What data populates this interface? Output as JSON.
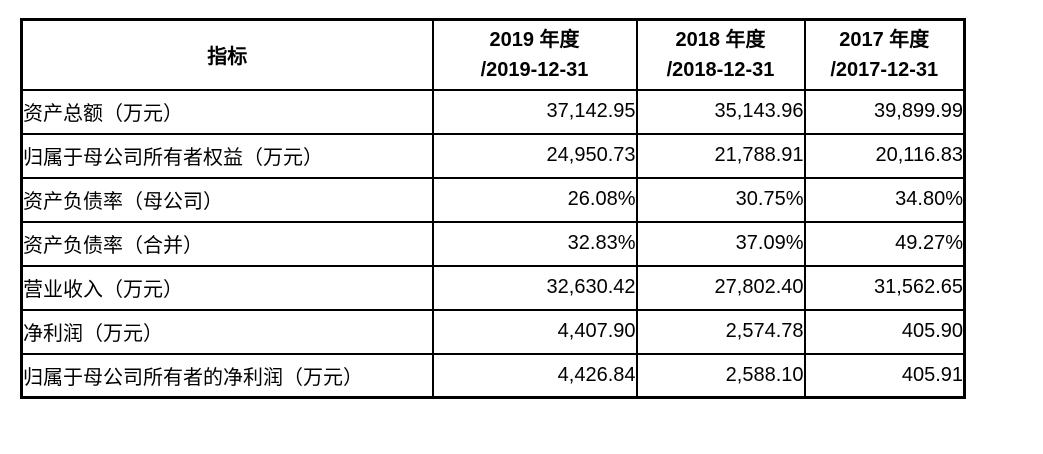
{
  "table": {
    "header": {
      "indicator_label": "指标",
      "period_columns": [
        {
          "line1": "2019 年度",
          "line2": "/2019-12-31"
        },
        {
          "line1": "2018 年度",
          "line2": "/2018-12-31"
        },
        {
          "line1": "2017 年度",
          "line2": "/2017-12-31"
        }
      ]
    },
    "rows": [
      {
        "label": "资产总额（万元）",
        "values": [
          "37,142.95",
          "35,143.96",
          "39,899.99"
        ]
      },
      {
        "label": "归属于母公司所有者权益（万元）",
        "values": [
          "24,950.73",
          "21,788.91",
          "20,116.83"
        ]
      },
      {
        "label": "资产负债率（母公司）",
        "values": [
          "26.08%",
          "30.75%",
          "34.80%"
        ]
      },
      {
        "label": "资产负债率（合并）",
        "values": [
          "32.83%",
          "37.09%",
          "49.27%"
        ]
      },
      {
        "label": "营业收入（万元）",
        "values": [
          "32,630.42",
          "27,802.40",
          "31,562.65"
        ]
      },
      {
        "label": "净利润（万元）",
        "values": [
          "4,407.90",
          "2,574.78",
          "405.90"
        ]
      },
      {
        "label": "归属于母公司所有者的净利润（万元）",
        "values": [
          "4,426.84",
          "2,588.10",
          "405.91"
        ]
      }
    ],
    "colors": {
      "border": "#000000",
      "text": "#000000",
      "background": "#ffffff"
    }
  }
}
